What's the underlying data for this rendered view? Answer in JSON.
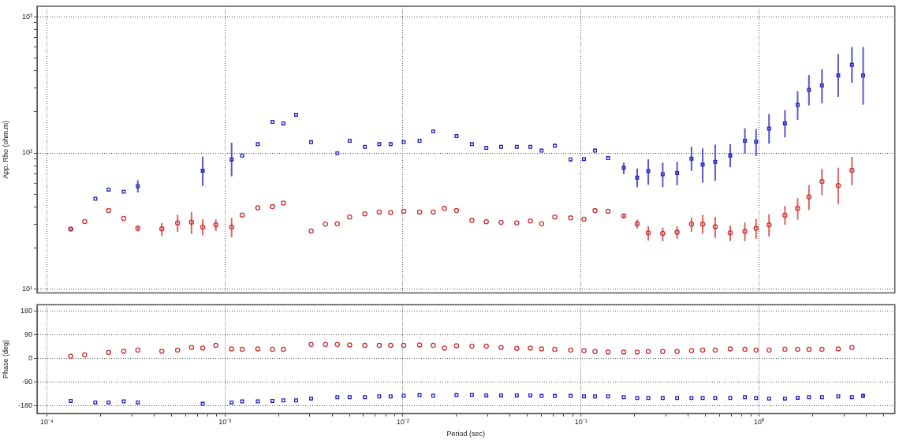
{
  "chart_data": [
    {
      "type": "scatter",
      "ylabel": "App. Rho (ohm.m)",
      "log": "xy",
      "grid": true,
      "tick_labels": "y",
      "xlim": [
        8.8e-05,
        5.8
      ],
      "ylim": [
        9.4,
        1190
      ],
      "xticks": [
        0.0001,
        0.001,
        0.01,
        0.1,
        1
      ],
      "yticks": [
        {
          "value": 10,
          "label": "10¹"
        },
        {
          "value": 20,
          "label": null
        },
        {
          "value": 30,
          "label": null
        },
        {
          "value": 40,
          "label": null
        },
        {
          "value": 50,
          "label": null
        },
        {
          "value": 60,
          "label": null
        },
        {
          "value": 70,
          "label": null
        },
        {
          "value": 80,
          "label": null
        },
        {
          "value": 90,
          "label": null
        },
        {
          "value": 100,
          "label": "10²"
        },
        {
          "value": 200,
          "label": null
        },
        {
          "value": 300,
          "label": null
        },
        {
          "value": 400,
          "label": null
        },
        {
          "value": 500,
          "label": null
        },
        {
          "value": 600,
          "label": null
        },
        {
          "value": 700,
          "label": null
        },
        {
          "value": 800,
          "label": null
        },
        {
          "value": 900,
          "label": null
        },
        {
          "value": 1000,
          "label": "10³"
        }
      ],
      "series": [
        {
          "type": "scatter",
          "color": "#d03030",
          "marker": "circle",
          "x": [
            0.000136,
            0.000163,
            0.000222,
            0.00027,
            0.000324,
            0.000442,
            0.000542,
            0.000649,
            0.00075,
            0.000889,
            0.00109,
            0.00125,
            0.00153,
            0.00185,
            0.00213,
            0.00305,
            0.00367,
            0.00428,
            0.00502,
            0.00611,
            0.00736,
            0.00853,
            0.0101,
            0.0124,
            0.0148,
            0.0171,
            0.02,
            0.0244,
            0.0294,
            0.0356,
            0.0436,
            0.052,
            0.0601,
            0.0713,
            0.0875,
            0.104,
            0.12,
            0.142,
            0.174,
            0.207,
            0.239,
            0.288,
            0.347,
            0.418,
            0.483,
            0.568,
            0.69,
            0.834,
            0.964,
            1.14,
            1.4,
            1.65,
            1.91,
            2.26,
            2.79,
            3.33
          ],
          "values": [
            27.7,
            31.4,
            37.8,
            33.1,
            28.0,
            27.8,
            30.7,
            31.1,
            28.6,
            29.7,
            28.6,
            35.1,
            39.6,
            40.4,
            42.9,
            26.8,
            30.1,
            30.3,
            33.9,
            35.8,
            36.9,
            36.6,
            37.4,
            36.9,
            36.9,
            39.2,
            37.8,
            32.0,
            31.3,
            31.0,
            30.7,
            31.7,
            30.3,
            33.9,
            33.4,
            32.7,
            37.8,
            37.4,
            34.6,
            30.3,
            26.0,
            25.7,
            26.2,
            30.1,
            30.1,
            28.8,
            26.0,
            26.6,
            28.0,
            29.7,
            34.9,
            39.2,
            47.6,
            61.7,
            57.8,
            74.6
          ],
          "errors": [
            null,
            null,
            null,
            null,
            [
              26.6,
              29.3
            ],
            [
              24.5,
              30.6
            ],
            [
              26.4,
              35.2
            ],
            [
              25.5,
              36.9
            ],
            [
              24.9,
              32.6
            ],
            [
              26.8,
              32.6
            ],
            [
              24.1,
              33.4
            ],
            null,
            null,
            null,
            null,
            null,
            null,
            null,
            null,
            null,
            null,
            null,
            null,
            null,
            null,
            null,
            null,
            null,
            null,
            null,
            null,
            null,
            null,
            null,
            null,
            null,
            null,
            null,
            [
              33.0,
              35.6
            ],
            [
              28.0,
              32.4
            ],
            [
              22.8,
              29.0
            ],
            [
              22.5,
              28.3
            ],
            [
              23.5,
              29.0
            ],
            [
              26.4,
              33.6
            ],
            [
              25.5,
              35.1
            ],
            [
              23.8,
              33.9
            ],
            [
              22.6,
              29.4
            ],
            [
              22.6,
              30.9
            ],
            [
              23.5,
              32.8
            ],
            [
              24.4,
              35.5
            ],
            [
              29.7,
              40.8
            ],
            [
              32.4,
              46.7
            ],
            [
              38.1,
              58.1
            ],
            [
              49.1,
              76.2
            ],
            [
              42.2,
              77.9
            ],
            [
              58.1,
              93.6
            ]
          ]
        },
        {
          "type": "scatter",
          "color": "#2020c0",
          "marker": "square",
          "x": [
            0.000136,
            0.000187,
            0.000222,
            0.00027,
            0.000324,
            0.00075,
            0.00109,
            0.00125,
            0.00153,
            0.00185,
            0.00213,
            0.00251,
            0.00305,
            0.00428,
            0.00502,
            0.00611,
            0.00736,
            0.00853,
            0.0101,
            0.0124,
            0.0148,
            0.02,
            0.0244,
            0.0294,
            0.0356,
            0.0436,
            0.052,
            0.0601,
            0.0713,
            0.0875,
            0.104,
            0.12,
            0.142,
            0.174,
            0.207,
            0.239,
            0.288,
            0.347,
            0.418,
            0.483,
            0.568,
            0.69,
            0.834,
            0.964,
            1.14,
            1.4,
            1.65,
            1.91,
            2.26,
            2.79,
            3.33,
            3.85
          ],
          "values": [
            27.7,
            46.2,
            53.9,
            52.0,
            57.0,
            74.2,
            89.7,
            95.8,
            116,
            169,
            165,
            191,
            120,
            99.5,
            123,
            111,
            116,
            116,
            120,
            123,
            144,
            133,
            116,
            109,
            111,
            111,
            111,
            104,
            113,
            89.7,
            90.3,
            104,
            91.6,
            77.9,
            65.9,
            73.6,
            69.8,
            71.3,
            90.8,
            82.1,
            86.2,
            95.8,
            123,
            121,
            151,
            165,
            225,
            290,
            313,
            370,
            443,
            370
          ],
          "errors": [
            null,
            null,
            null,
            null,
            [
              51.3,
              63.1
            ],
            [
              57.3,
              94.0
            ],
            [
              67.4,
              119
            ],
            null,
            null,
            null,
            null,
            null,
            null,
            null,
            null,
            null,
            null,
            null,
            null,
            null,
            null,
            null,
            null,
            null,
            null,
            null,
            null,
            null,
            null,
            null,
            null,
            null,
            null,
            [
              69.8,
              85.1
            ],
            [
              56.0,
              76.9
            ],
            [
              58.5,
              90.0
            ],
            [
              56.1,
              85.1
            ],
            [
              57.8,
              86.2
            ],
            [
              73.9,
              111
            ],
            [
              60.7,
              108
            ],
            [
              62.5,
              115
            ],
            [
              78.6,
              116
            ],
            [
              99,
              152
            ],
            [
              94.9,
              150
            ],
            [
              117,
              193
            ],
            [
              130,
              206
            ],
            [
              175,
              284
            ],
            [
              223,
              374
            ],
            [
              231,
              412
            ],
            [
              257,
              532
            ],
            [
              327,
              598
            ],
            [
              226,
              598
            ]
          ]
        }
      ]
    },
    {
      "type": "scatter",
      "xlabel": "Period (sec)",
      "ylabel": "Phase (deg)",
      "log": "x",
      "grid": true,
      "xlim": [
        8.8e-05,
        5.8
      ],
      "ylim": [
        -210,
        204
      ],
      "xticks": [
        {
          "value": 0.0001,
          "label": "10⁻⁴"
        },
        {
          "value": 0.0002,
          "label": null
        },
        {
          "value": 0.0003,
          "label": null
        },
        {
          "value": 0.0004,
          "label": null
        },
        {
          "value": 0.0005,
          "label": null
        },
        {
          "value": 0.0006,
          "label": null
        },
        {
          "value": 0.0007,
          "label": null
        },
        {
          "value": 0.0008,
          "label": null
        },
        {
          "value": 0.0009,
          "label": null
        },
        {
          "value": 0.001,
          "label": "10⁻³"
        },
        {
          "value": 0.002,
          "label": null
        },
        {
          "value": 0.003,
          "label": null
        },
        {
          "value": 0.004,
          "label": null
        },
        {
          "value": 0.005,
          "label": null
        },
        {
          "value": 0.006,
          "label": null
        },
        {
          "value": 0.007,
          "label": null
        },
        {
          "value": 0.008,
          "label": null
        },
        {
          "value": 0.009,
          "label": null
        },
        {
          "value": 0.01,
          "label": "10⁻²"
        },
        {
          "value": 0.02,
          "label": null
        },
        {
          "value": 0.03,
          "label": null
        },
        {
          "value": 0.04,
          "label": null
        },
        {
          "value": 0.05,
          "label": null
        },
        {
          "value": 0.06,
          "label": null
        },
        {
          "value": 0.07,
          "label": null
        },
        {
          "value": 0.08,
          "label": null
        },
        {
          "value": 0.09,
          "label": null
        },
        {
          "value": 0.1,
          "label": "10⁻¹"
        },
        {
          "value": 0.2,
          "label": null
        },
        {
          "value": 0.3,
          "label": null
        },
        {
          "value": 0.4,
          "label": null
        },
        {
          "value": 0.5,
          "label": null
        },
        {
          "value": 0.6,
          "label": null
        },
        {
          "value": 0.7,
          "label": null
        },
        {
          "value": 0.8,
          "label": null
        },
        {
          "value": 0.9,
          "label": null
        },
        {
          "value": 1,
          "label": "10⁰"
        },
        {
          "value": 2,
          "label": null
        },
        {
          "value": 3,
          "label": null
        },
        {
          "value": 4,
          "label": null
        },
        {
          "value": 5,
          "label": null
        }
      ],
      "yticks": [
        -180,
        -90,
        0,
        90,
        180
      ],
      "series": [
        {
          "type": "scatter",
          "color": "#d03030",
          "marker": "circle",
          "x": [
            0.000136,
            0.000163,
            0.000222,
            0.00027,
            0.000324,
            0.000442,
            0.000542,
            0.000649,
            0.00075,
            0.000889,
            0.00109,
            0.00125,
            0.00153,
            0.00185,
            0.00213,
            0.00305,
            0.00367,
            0.00428,
            0.00502,
            0.00611,
            0.00736,
            0.00853,
            0.0101,
            0.0124,
            0.0148,
            0.0171,
            0.02,
            0.0244,
            0.0294,
            0.0356,
            0.0436,
            0.052,
            0.0601,
            0.0713,
            0.0875,
            0.104,
            0.12,
            0.142,
            0.174,
            0.207,
            0.239,
            0.288,
            0.347,
            0.418,
            0.483,
            0.568,
            0.69,
            0.834,
            0.964,
            1.14,
            1.4,
            1.65,
            1.91,
            2.26,
            2.79,
            3.33
          ],
          "values": [
            8,
            13,
            22,
            27,
            31,
            27,
            31,
            41,
            39,
            49,
            36,
            34,
            36,
            34,
            34,
            53,
            53,
            53,
            51,
            49,
            49,
            49,
            49,
            51,
            49,
            39,
            48,
            46,
            46,
            41,
            38,
            39,
            36,
            34,
            31,
            29,
            26,
            24,
            24,
            24,
            26,
            26,
            26,
            29,
            31,
            31,
            36,
            34,
            31,
            31,
            34,
            34,
            34,
            34,
            36,
            41
          ]
        },
        {
          "type": "scatter",
          "color": "#2020c0",
          "marker": "square",
          "x": [
            0.000136,
            0.000187,
            0.000222,
            0.00027,
            0.000324,
            0.00075,
            0.00109,
            0.00125,
            0.00153,
            0.00185,
            0.00213,
            0.00251,
            0.00305,
            0.00428,
            0.00502,
            0.00611,
            0.00736,
            0.00853,
            0.0101,
            0.0124,
            0.0148,
            0.02,
            0.0244,
            0.0294,
            0.0356,
            0.0436,
            0.052,
            0.0601,
            0.0713,
            0.0875,
            0.104,
            0.12,
            0.142,
            0.174,
            0.207,
            0.239,
            0.288,
            0.347,
            0.418,
            0.483,
            0.568,
            0.69,
            0.834,
            0.964,
            1.14,
            1.4,
            1.65,
            1.91,
            2.26,
            2.79,
            3.33,
            3.85
          ],
          "values": [
            -162,
            -168,
            -168,
            -164,
            -168,
            -173,
            -168,
            -164,
            -164,
            -162,
            -160,
            -160,
            -153,
            -148,
            -148,
            -148,
            -145,
            -145,
            -142,
            -140,
            -142,
            -140,
            -139,
            -141,
            -141,
            -141,
            -141,
            -143,
            -143,
            -143,
            -145,
            -145,
            -145,
            -148,
            -151,
            -151,
            -151,
            -151,
            -151,
            -151,
            -151,
            -151,
            -148,
            -151,
            -153,
            -153,
            -150,
            -148,
            -148,
            -145,
            -148,
            -143
          ],
          "errors": [
            null,
            null,
            null,
            null,
            null,
            null,
            null,
            null,
            null,
            null,
            null,
            null,
            null,
            null,
            null,
            null,
            null,
            null,
            null,
            null,
            null,
            null,
            null,
            null,
            null,
            null,
            null,
            null,
            null,
            null,
            null,
            null,
            null,
            null,
            null,
            null,
            null,
            null,
            null,
            null,
            null,
            null,
            null,
            null,
            null,
            null,
            null,
            null,
            null,
            null,
            null,
            [
              -151,
              -136
            ]
          ]
        }
      ]
    }
  ]
}
